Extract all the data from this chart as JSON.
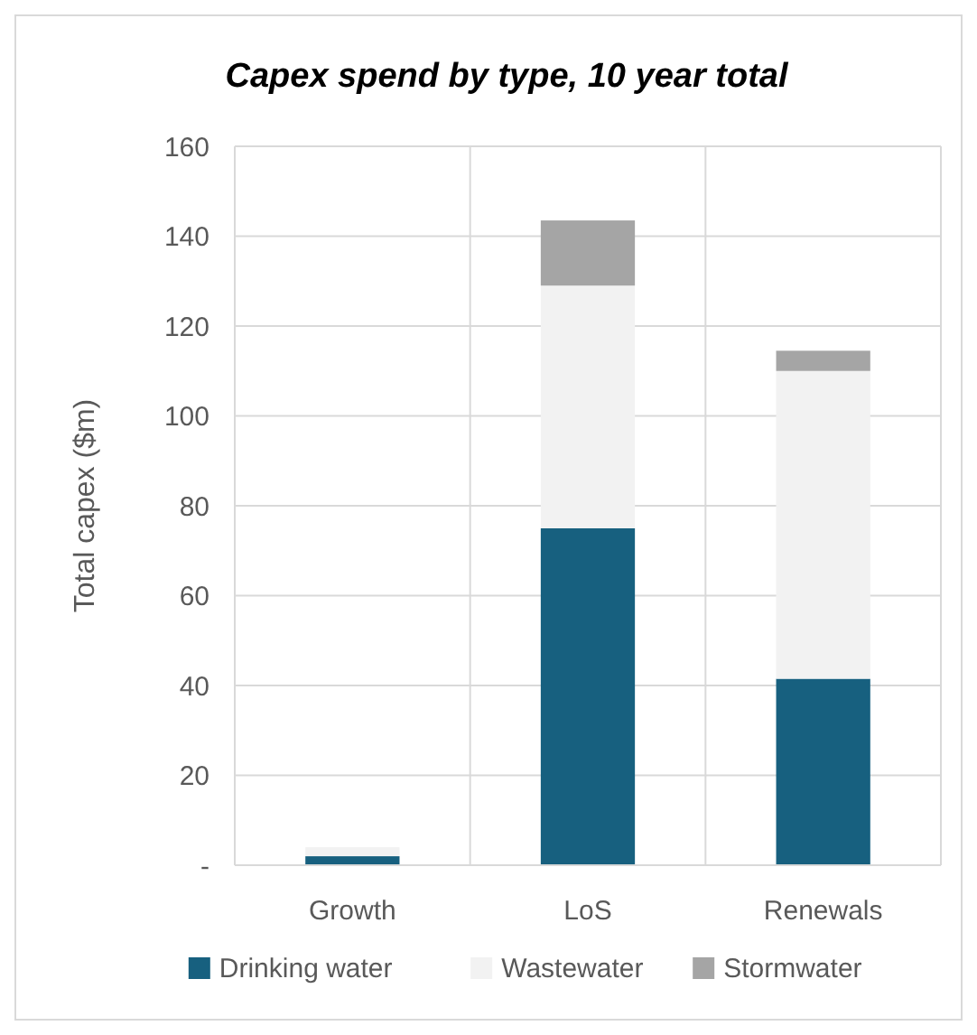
{
  "chart_data": {
    "type": "bar",
    "title": "Capex spend by type, 10 year total",
    "ylabel": "Total capex ($m)",
    "categories": [
      "Growth",
      "LoS",
      "Renewals"
    ],
    "stacked": true,
    "series": [
      {
        "name": "Drinking water",
        "color": "#17607f",
        "values": [
          2,
          75,
          41.5
        ]
      },
      {
        "name": "Wastewater",
        "color": "#f2f2f2",
        "values": [
          2,
          54,
          68.5
        ]
      },
      {
        "name": "Stormwater",
        "color": "#a5a5a5",
        "values": [
          0,
          14.5,
          4.5
        ]
      }
    ],
    "ylim": [
      0,
      160
    ],
    "yticks": [
      {
        "value": 0,
        "label": "-"
      },
      20,
      40,
      60,
      80,
      100,
      120,
      140,
      160
    ],
    "grid": true,
    "legend": "bottom"
  }
}
